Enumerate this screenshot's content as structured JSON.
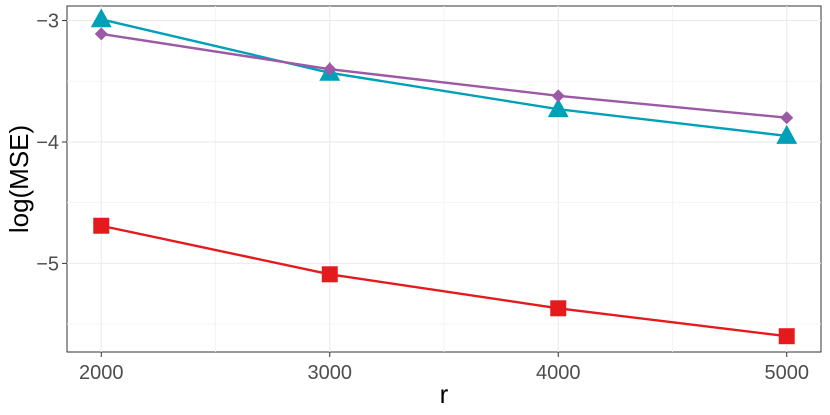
{
  "chart_data": {
    "type": "line",
    "title": "",
    "xlabel": "r",
    "ylabel": "log(MSE)",
    "x": [
      2000,
      3000,
      4000,
      5000
    ],
    "xticks": [
      2000,
      3000,
      4000,
      5000
    ],
    "yticks": [
      -5,
      -4,
      -3
    ],
    "xlim": [
      1850,
      5150
    ],
    "ylim": [
      -5.73,
      -2.88
    ],
    "grid": true,
    "legend": "none",
    "series": [
      {
        "color": "#00a0b8",
        "marker": "triangle",
        "values": [
          -2.99,
          -3.43,
          -3.73,
          -3.95
        ]
      },
      {
        "color": "#9b59a6",
        "marker": "diamond",
        "values": [
          -3.11,
          -3.4,
          -3.62,
          -3.8
        ]
      },
      {
        "color": "#e41a1c",
        "marker": "square",
        "values": [
          -4.69,
          -5.09,
          -5.37,
          -5.6
        ]
      }
    ]
  }
}
